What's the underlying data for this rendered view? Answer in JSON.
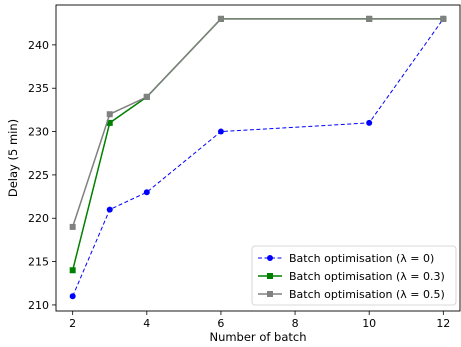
{
  "chart_data": {
    "type": "line",
    "title": "",
    "xlabel": "Number of batch",
    "ylabel": "Delay (5 min)",
    "xlim": [
      1.55,
      12.45
    ],
    "ylim": [
      209.3,
      244.6
    ],
    "xticks": [
      "2",
      "4",
      "6",
      "8",
      "10",
      "12"
    ],
    "xtick_values": [
      2,
      4,
      6,
      8,
      10,
      12
    ],
    "yticks": [
      "210",
      "215",
      "220",
      "225",
      "230",
      "235",
      "240"
    ],
    "ytick_values": [
      210,
      215,
      220,
      225,
      230,
      235,
      240
    ],
    "grid": false,
    "legend_position": "bottom-right",
    "series": [
      {
        "name": "Batch optimisation (λ = 0)",
        "x": [
          2,
          3,
          4,
          6,
          10,
          12
        ],
        "y": [
          211,
          221,
          223,
          230,
          231,
          243
        ],
        "color": "#0000ff",
        "line_style": "dashed",
        "marker": "circle"
      },
      {
        "name": "Batch optimisation (λ = 0.3)",
        "x": [
          2,
          3,
          4,
          6,
          10,
          12
        ],
        "y": [
          214,
          231,
          234,
          243,
          243,
          243
        ],
        "color": "#008000",
        "line_style": "solid",
        "marker": "square"
      },
      {
        "name": "Batch optimisation (λ = 0.5)",
        "x": [
          2,
          3,
          4,
          6,
          10,
          12
        ],
        "y": [
          219,
          232,
          234,
          243,
          243,
          243
        ],
        "color": "#808080",
        "line_style": "solid",
        "marker": "square"
      }
    ]
  }
}
